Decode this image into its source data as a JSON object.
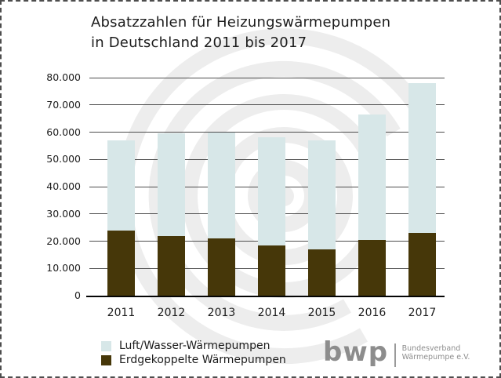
{
  "title": {
    "line1": "Absatzzahlen für Heizungswärmepumpen",
    "line2": "in Deutschland 2011 bis 2017"
  },
  "chart_data": {
    "type": "bar",
    "stacked": true,
    "title": "Absatzzahlen für Heizungswärmepumpen in Deutschland 2011 bis 2017",
    "categories": [
      "2011",
      "2012",
      "2013",
      "2014",
      "2015",
      "2016",
      "2017"
    ],
    "series": [
      {
        "name": "Luft/Wasser-Wärmepumpen",
        "color": "#d7e7e8",
        "values": [
          33000,
          37500,
          39000,
          39500,
          40000,
          46000,
          55000
        ]
      },
      {
        "name": "Erdgekoppelte Wärmepumpen",
        "color": "#463709",
        "values": [
          24000,
          22000,
          21000,
          18500,
          17000,
          20500,
          23000
        ]
      }
    ],
    "totals": [
      57000,
      59500,
      60000,
      58000,
      57000,
      66500,
      78000
    ],
    "xlabel": "",
    "ylabel": "",
    "ylim": [
      0,
      80000
    ],
    "grid": true,
    "legend_position": "bottom-left",
    "yticks": [
      {
        "value": 80000,
        "label": "80.000"
      },
      {
        "value": 70000,
        "label": "70.000"
      },
      {
        "value": 60000,
        "label": "60.000"
      },
      {
        "value": 50000,
        "label": "50.000"
      },
      {
        "value": 40000,
        "label": "40.000"
      },
      {
        "value": 30000,
        "label": "30.000"
      },
      {
        "value": 20000,
        "label": "20.000"
      },
      {
        "value": 10000,
        "label": "10.000"
      },
      {
        "value": 0,
        "label": "0"
      }
    ]
  },
  "logo": {
    "abbr": "bwp",
    "org_line1": "Bundesverband",
    "org_line2": "Wärmepumpe e.V."
  },
  "watermark": {
    "name": "bwp-swirl",
    "color": "#ededed"
  }
}
